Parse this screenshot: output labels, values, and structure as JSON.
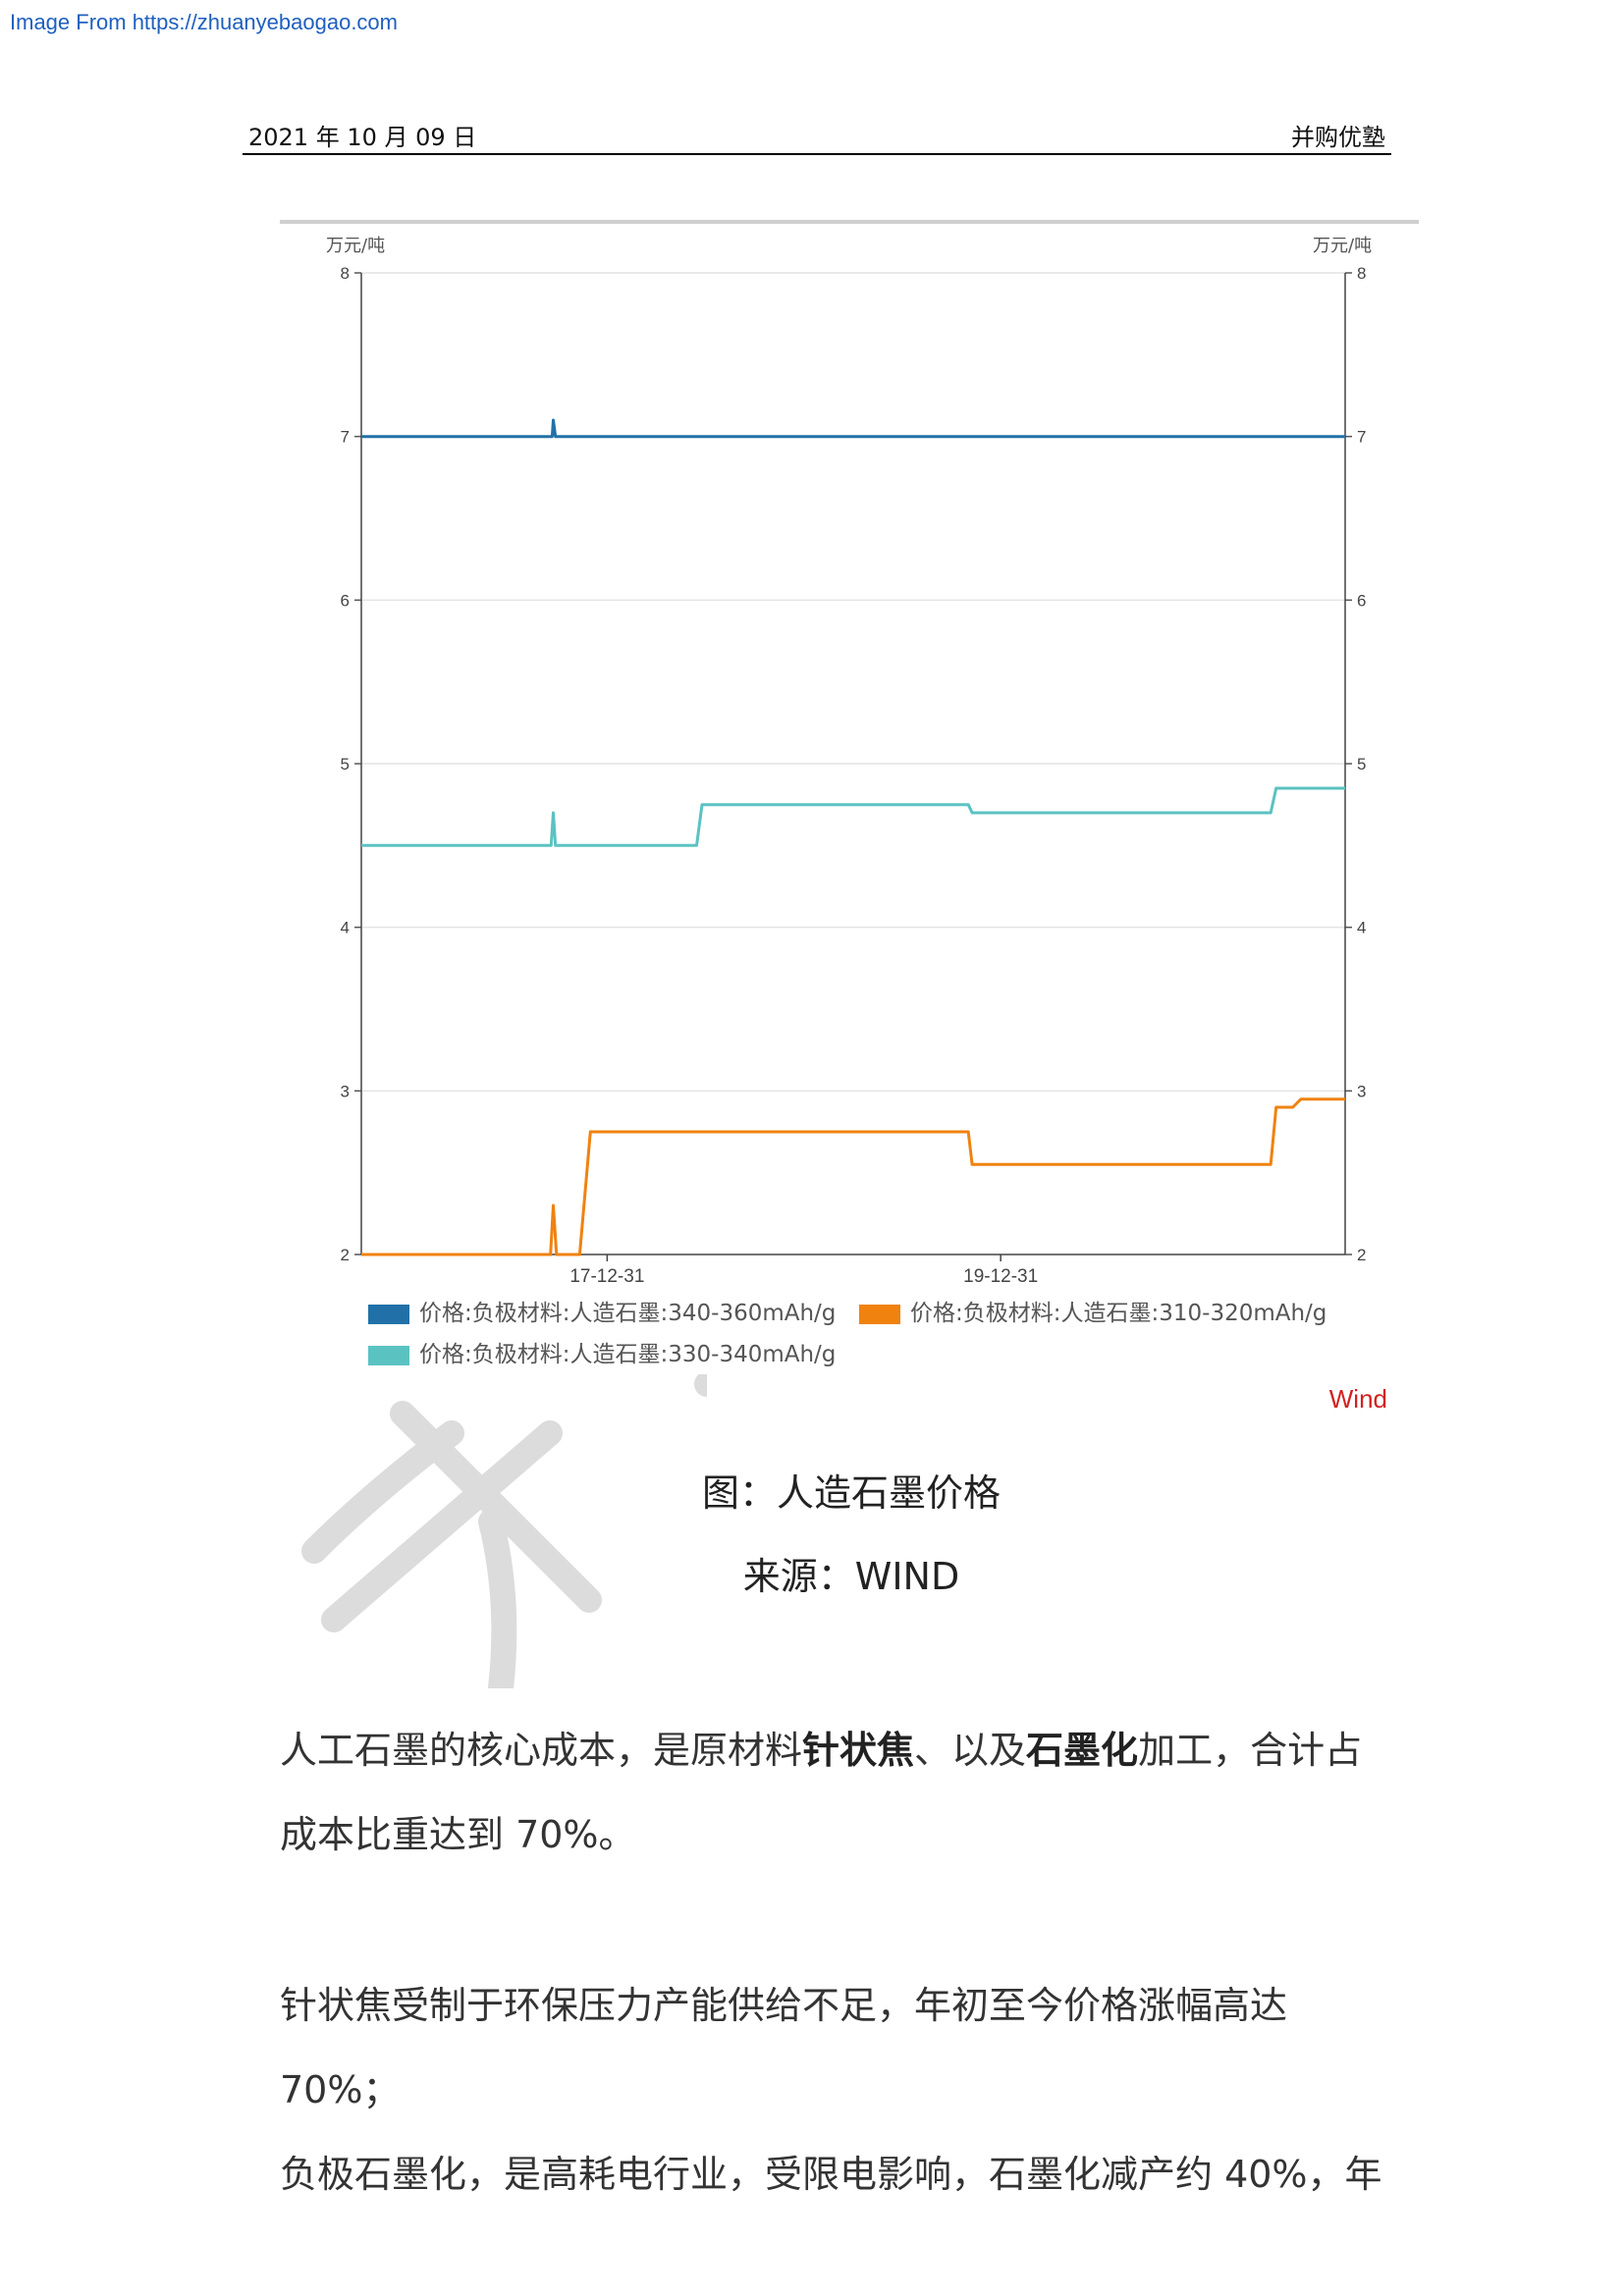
{
  "source_link": "Image From https://zhuanyebaogao.com",
  "header": {
    "date": "2021 年 10 月 09 日",
    "brand": "并购优塾"
  },
  "colors": {
    "series_340_360": "#2171a8",
    "series_310_320": "#f0820f",
    "series_330_340": "#5bc2c2",
    "wind_brand": "#d42020"
  },
  "chart_data": {
    "type": "line",
    "y_unit_left": "万元/吨",
    "y_unit_right": "万元/吨",
    "ylim": [
      2,
      8
    ],
    "yticks": [
      2,
      3,
      4,
      5,
      6,
      7,
      8
    ],
    "xlim": [
      "2016-10-01",
      "2021-09-30"
    ],
    "xticks": [
      "17-12-31",
      "19-12-31"
    ],
    "grid": true,
    "legend_position": "bottom",
    "brand": "Wind",
    "series": [
      {
        "name": "价格:负极材料:人造石墨:340-360mAh/g",
        "color_key": "series_340_360",
        "points": [
          [
            "2016-10-01",
            7.0
          ],
          [
            "2017-09-20",
            7.0
          ],
          [
            "2017-09-22",
            7.1
          ],
          [
            "2017-09-26",
            7.0
          ],
          [
            "2021-09-30",
            7.0
          ]
        ]
      },
      {
        "name": "价格:负极材料:人造石墨:310-320mAh/g",
        "color_key": "series_310_320",
        "points": [
          [
            "2016-10-01",
            2.0
          ],
          [
            "2017-09-17",
            2.0
          ],
          [
            "2017-09-22",
            2.3
          ],
          [
            "2017-09-28",
            2.0
          ],
          [
            "2017-11-10",
            2.0
          ],
          [
            "2017-11-30",
            2.75
          ],
          [
            "2019-11-01",
            2.75
          ],
          [
            "2019-11-08",
            2.55
          ],
          [
            "2021-05-15",
            2.55
          ],
          [
            "2021-05-25",
            2.9
          ],
          [
            "2021-06-25",
            2.9
          ],
          [
            "2021-07-10",
            2.95
          ],
          [
            "2021-09-30",
            2.95
          ]
        ]
      },
      {
        "name": "价格:负极材料:人造石墨:330-340mAh/g",
        "color_key": "series_330_340",
        "points": [
          [
            "2016-10-01",
            4.5
          ],
          [
            "2017-09-18",
            4.5
          ],
          [
            "2017-09-22",
            4.7
          ],
          [
            "2017-09-26",
            4.5
          ],
          [
            "2018-06-15",
            4.5
          ],
          [
            "2018-06-25",
            4.75
          ],
          [
            "2019-11-01",
            4.75
          ],
          [
            "2019-11-08",
            4.7
          ],
          [
            "2021-05-15",
            4.7
          ],
          [
            "2021-05-25",
            4.85
          ],
          [
            "2021-09-30",
            4.85
          ]
        ]
      }
    ]
  },
  "caption": {
    "title": "图：人造石墨价格",
    "source": "来源：WIND"
  },
  "body": {
    "p1_a": "人工石墨的核心成本，是原材料",
    "p1_b": "针状焦",
    "p1_c": "、以及",
    "p1_d": "石墨化",
    "p1_e": "加工，合计占",
    "p1_f": "成本比重达到 70%。",
    "p2_a": "针状焦受制于环保压力产能供给不足，年初至今价格涨幅高达 70%；",
    "p2_b": "负极石墨化，是高耗电行业，受限电影响，石墨化减产约 40%，年"
  }
}
